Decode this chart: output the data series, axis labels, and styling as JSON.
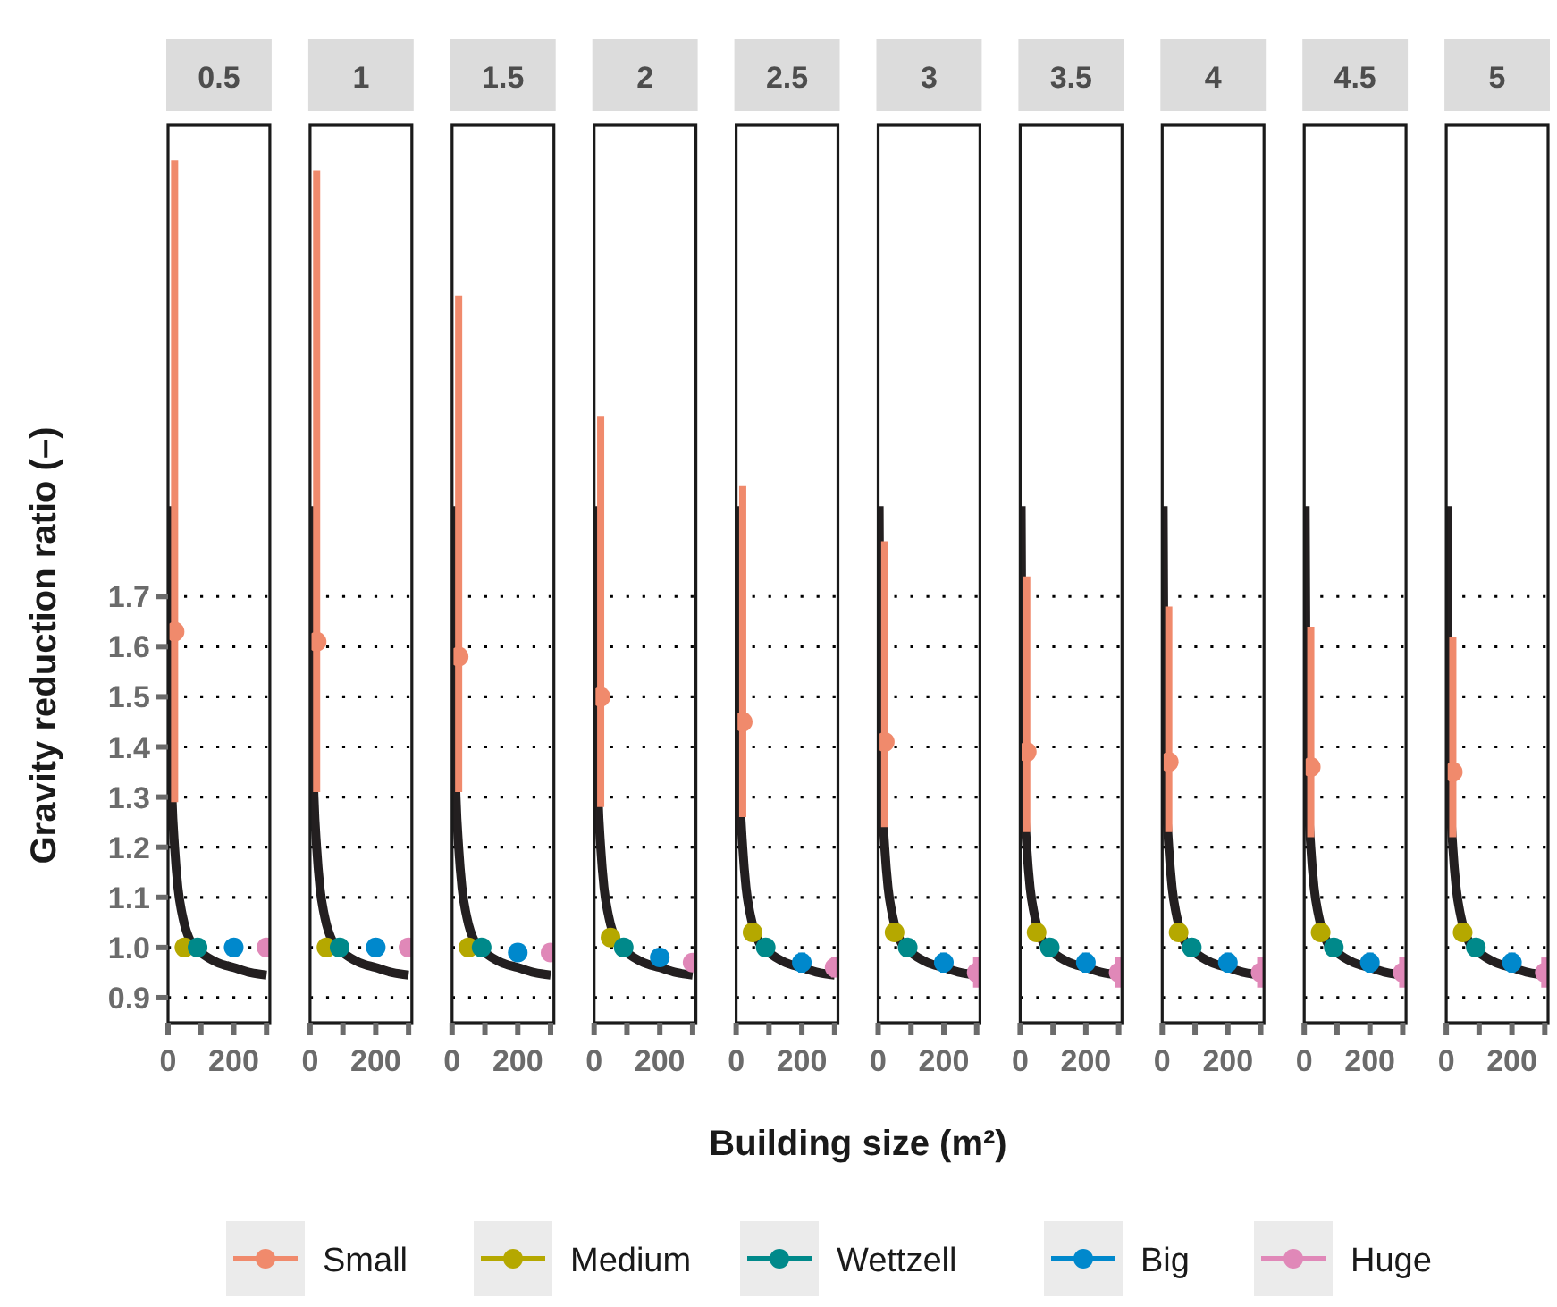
{
  "chart_data": [
    {
      "type": "scatter",
      "title": "0.5",
      "ylabel": "Gravity reduction ratio (–)",
      "legend": "bottom",
      "grid": "y",
      "marker": "circle",
      "xlim": [
        0,
        310
      ],
      "ylim": [
        0.85,
        2.64
      ],
      "xticks": [
        {
          "value": 0,
          "label": "0"
        },
        {
          "value": 100,
          "label": null
        },
        {
          "value": 200,
          "label": "200"
        },
        {
          "value": 300,
          "label": null
        }
      ],
      "yticks": [
        0.9,
        {
          "value": 1,
          "label": "1.0"
        },
        1.1,
        1.2,
        1.3,
        1.4,
        1.5,
        1.6,
        1.7
      ],
      "series": [
        {
          "type": "line",
          "marker": "none",
          "color": "#231f20",
          "x": [
            3,
            5,
            8,
            12,
            20,
            30,
            45,
            70,
            100,
            150,
            200,
            250,
            300
          ],
          "values": [
            1.88,
            1.6,
            1.4,
            1.3,
            1.2,
            1.12,
            1.06,
            1.01,
            0.99,
            0.97,
            0.96,
            0.95,
            0.945
          ]
        },
        {
          "name": "Small",
          "color": "#f08a6c",
          "x": [
            20
          ],
          "values": [
            1.63
          ],
          "errors": [
            [
              1.29,
              2.57
            ]
          ]
        },
        {
          "name": "Medium",
          "color": "#b5a800",
          "x": [
            50
          ],
          "values": [
            1.0
          ]
        },
        {
          "name": "Wettzell",
          "color": "#00898a",
          "x": [
            90
          ],
          "values": [
            1.0
          ]
        },
        {
          "name": "Big",
          "color": "#0088cc",
          "x": [
            200
          ],
          "values": [
            1.0
          ]
        },
        {
          "name": "Huge",
          "color": "#e088b8",
          "x": [
            300
          ],
          "values": [
            1.0
          ]
        }
      ]
    },
    {
      "type": "scatter",
      "title": "1",
      "grid": "y",
      "marker": "circle",
      "tick_labels": "x",
      "xlim": [
        0,
        310
      ],
      "ylim": [
        0.85,
        2.64
      ],
      "xticks": [
        {
          "value": 0,
          "label": "0"
        },
        {
          "value": 100,
          "label": null
        },
        {
          "value": 200,
          "label": "200"
        },
        {
          "value": 300,
          "label": null
        }
      ],
      "yticks": [
        0.9,
        1.0,
        1.1,
        1.2,
        1.3,
        1.4,
        1.5,
        1.6,
        1.7
      ],
      "series": [
        {
          "type": "line",
          "marker": "none",
          "color": "#231f20",
          "x": [
            3,
            5,
            8,
            12,
            20,
            30,
            45,
            70,
            100,
            150,
            200,
            250,
            300
          ],
          "values": [
            1.88,
            1.6,
            1.4,
            1.3,
            1.2,
            1.12,
            1.06,
            1.01,
            0.99,
            0.97,
            0.96,
            0.95,
            0.945
          ]
        },
        {
          "color": "#f08a6c",
          "x": [
            20
          ],
          "values": [
            1.61
          ],
          "errors": [
            [
              1.31,
              2.55
            ]
          ]
        },
        {
          "color": "#b5a800",
          "x": [
            50
          ],
          "values": [
            1.0
          ]
        },
        {
          "color": "#00898a",
          "x": [
            90
          ],
          "values": [
            1.0
          ]
        },
        {
          "color": "#0088cc",
          "x": [
            200
          ],
          "values": [
            1.0
          ]
        },
        {
          "color": "#e088b8",
          "x": [
            300
          ],
          "values": [
            1.0
          ]
        }
      ]
    },
    {
      "type": "scatter",
      "title": "1.5",
      "grid": "y",
      "marker": "circle",
      "tick_labels": "x",
      "xlim": [
        0,
        310
      ],
      "ylim": [
        0.85,
        2.64
      ],
      "xticks": [
        {
          "value": 0,
          "label": "0"
        },
        {
          "value": 100,
          "label": null
        },
        {
          "value": 200,
          "label": "200"
        },
        {
          "value": 300,
          "label": null
        }
      ],
      "yticks": [
        0.9,
        1.0,
        1.1,
        1.2,
        1.3,
        1.4,
        1.5,
        1.6,
        1.7
      ],
      "series": [
        {
          "type": "line",
          "marker": "none",
          "color": "#231f20",
          "x": [
            3,
            5,
            8,
            12,
            20,
            30,
            45,
            70,
            100,
            150,
            200,
            250,
            300
          ],
          "values": [
            1.88,
            1.6,
            1.4,
            1.3,
            1.2,
            1.12,
            1.06,
            1.01,
            0.99,
            0.97,
            0.96,
            0.95,
            0.945
          ]
        },
        {
          "color": "#f08a6c",
          "x": [
            20
          ],
          "values": [
            1.58
          ],
          "errors": [
            [
              1.31,
              2.3
            ]
          ]
        },
        {
          "color": "#b5a800",
          "x": [
            50
          ],
          "values": [
            1.0
          ]
        },
        {
          "color": "#00898a",
          "x": [
            90
          ],
          "values": [
            1.0
          ]
        },
        {
          "color": "#0088cc",
          "x": [
            200
          ],
          "values": [
            0.99
          ]
        },
        {
          "color": "#e088b8",
          "x": [
            300
          ],
          "values": [
            0.99
          ]
        }
      ]
    },
    {
      "type": "scatter",
      "title": "2",
      "grid": "y",
      "marker": "circle",
      "tick_labels": "x",
      "xlim": [
        0,
        310
      ],
      "ylim": [
        0.85,
        2.64
      ],
      "xticks": [
        {
          "value": 0,
          "label": "0"
        },
        {
          "value": 100,
          "label": null
        },
        {
          "value": 200,
          "label": "200"
        },
        {
          "value": 300,
          "label": null
        }
      ],
      "yticks": [
        0.9,
        1.0,
        1.1,
        1.2,
        1.3,
        1.4,
        1.5,
        1.6,
        1.7
      ],
      "series": [
        {
          "type": "line",
          "marker": "none",
          "color": "#231f20",
          "x": [
            3,
            5,
            8,
            12,
            20,
            30,
            45,
            70,
            100,
            150,
            200,
            250,
            300
          ],
          "values": [
            1.88,
            1.6,
            1.4,
            1.3,
            1.2,
            1.12,
            1.06,
            1.01,
            0.99,
            0.97,
            0.96,
            0.95,
            0.945
          ]
        },
        {
          "color": "#f08a6c",
          "x": [
            20
          ],
          "values": [
            1.5
          ],
          "errors": [
            [
              1.28,
              2.06
            ]
          ]
        },
        {
          "color": "#b5a800",
          "x": [
            50
          ],
          "values": [
            1.02
          ]
        },
        {
          "color": "#00898a",
          "x": [
            90
          ],
          "values": [
            1.0
          ]
        },
        {
          "color": "#0088cc",
          "x": [
            200
          ],
          "values": [
            0.98
          ]
        },
        {
          "color": "#e088b8",
          "x": [
            300
          ],
          "values": [
            0.97
          ]
        }
      ]
    },
    {
      "type": "scatter",
      "title": "2.5",
      "xlabel": "Building size (m²)",
      "grid": "y",
      "marker": "circle",
      "tick_labels": "x",
      "xlim": [
        0,
        310
      ],
      "ylim": [
        0.85,
        2.64
      ],
      "xticks": [
        {
          "value": 0,
          "label": "0"
        },
        {
          "value": 100,
          "label": null
        },
        {
          "value": 200,
          "label": "200"
        },
        {
          "value": 300,
          "label": null
        }
      ],
      "yticks": [
        0.9,
        1.0,
        1.1,
        1.2,
        1.3,
        1.4,
        1.5,
        1.6,
        1.7
      ],
      "series": [
        {
          "type": "line",
          "marker": "none",
          "color": "#231f20",
          "x": [
            3,
            5,
            8,
            12,
            20,
            30,
            45,
            70,
            100,
            150,
            200,
            250,
            300
          ],
          "values": [
            1.88,
            1.6,
            1.4,
            1.3,
            1.2,
            1.12,
            1.06,
            1.01,
            0.99,
            0.97,
            0.96,
            0.95,
            0.945
          ]
        },
        {
          "color": "#f08a6c",
          "x": [
            20
          ],
          "values": [
            1.45
          ],
          "errors": [
            [
              1.26,
              1.92
            ]
          ]
        },
        {
          "color": "#b5a800",
          "x": [
            50
          ],
          "values": [
            1.03
          ]
        },
        {
          "color": "#00898a",
          "x": [
            90
          ],
          "values": [
            1.0
          ]
        },
        {
          "color": "#0088cc",
          "x": [
            200
          ],
          "values": [
            0.97
          ],
          "errors": [
            0.02
          ]
        },
        {
          "color": "#e088b8",
          "x": [
            300
          ],
          "values": [
            0.96
          ],
          "errors": [
            0.02
          ]
        }
      ]
    },
    {
      "type": "scatter",
      "title": "3",
      "grid": "y",
      "marker": "circle",
      "tick_labels": "x",
      "xlim": [
        0,
        310
      ],
      "ylim": [
        0.85,
        2.64
      ],
      "xticks": [
        {
          "value": 0,
          "label": "0"
        },
        {
          "value": 100,
          "label": null
        },
        {
          "value": 200,
          "label": "200"
        },
        {
          "value": 300,
          "label": null
        }
      ],
      "yticks": [
        0.9,
        1.0,
        1.1,
        1.2,
        1.3,
        1.4,
        1.5,
        1.6,
        1.7
      ],
      "series": [
        {
          "type": "line",
          "marker": "none",
          "color": "#231f20",
          "x": [
            3,
            5,
            8,
            12,
            20,
            30,
            45,
            70,
            100,
            150,
            200,
            250,
            300
          ],
          "values": [
            1.88,
            1.6,
            1.4,
            1.3,
            1.2,
            1.12,
            1.06,
            1.01,
            0.99,
            0.97,
            0.96,
            0.95,
            0.945
          ]
        },
        {
          "color": "#f08a6c",
          "x": [
            20
          ],
          "values": [
            1.41
          ],
          "errors": [
            [
              1.24,
              1.81
            ]
          ]
        },
        {
          "color": "#b5a800",
          "x": [
            50
          ],
          "values": [
            1.03
          ]
        },
        {
          "color": "#00898a",
          "x": [
            90
          ],
          "values": [
            1.0
          ]
        },
        {
          "color": "#0088cc",
          "x": [
            200
          ],
          "values": [
            0.97
          ],
          "errors": [
            0.02
          ]
        },
        {
          "color": "#e088b8",
          "x": [
            300
          ],
          "values": [
            0.95
          ],
          "errors": [
            0.03
          ]
        }
      ]
    },
    {
      "type": "scatter",
      "title": "3.5",
      "grid": "y",
      "marker": "circle",
      "tick_labels": "x",
      "xlim": [
        0,
        310
      ],
      "ylim": [
        0.85,
        2.64
      ],
      "xticks": [
        {
          "value": 0,
          "label": "0"
        },
        {
          "value": 100,
          "label": null
        },
        {
          "value": 200,
          "label": "200"
        },
        {
          "value": 300,
          "label": null
        }
      ],
      "yticks": [
        0.9,
        1.0,
        1.1,
        1.2,
        1.3,
        1.4,
        1.5,
        1.6,
        1.7
      ],
      "series": [
        {
          "type": "line",
          "marker": "none",
          "color": "#231f20",
          "x": [
            3,
            5,
            8,
            12,
            20,
            30,
            45,
            70,
            100,
            150,
            200,
            250,
            300
          ],
          "values": [
            1.88,
            1.6,
            1.4,
            1.3,
            1.2,
            1.12,
            1.06,
            1.01,
            0.99,
            0.97,
            0.96,
            0.95,
            0.945
          ]
        },
        {
          "color": "#f08a6c",
          "x": [
            20
          ],
          "values": [
            1.39
          ],
          "errors": [
            [
              1.23,
              1.74
            ]
          ]
        },
        {
          "color": "#b5a800",
          "x": [
            50
          ],
          "values": [
            1.03
          ]
        },
        {
          "color": "#00898a",
          "x": [
            90
          ],
          "values": [
            1.0
          ]
        },
        {
          "color": "#0088cc",
          "x": [
            200
          ],
          "values": [
            0.97
          ],
          "errors": [
            0.02
          ]
        },
        {
          "color": "#e088b8",
          "x": [
            300
          ],
          "values": [
            0.95
          ],
          "errors": [
            0.03
          ]
        }
      ]
    },
    {
      "type": "scatter",
      "title": "4",
      "grid": "y",
      "marker": "circle",
      "tick_labels": "x",
      "xlim": [
        0,
        310
      ],
      "ylim": [
        0.85,
        2.64
      ],
      "xticks": [
        {
          "value": 0,
          "label": "0"
        },
        {
          "value": 100,
          "label": null
        },
        {
          "value": 200,
          "label": "200"
        },
        {
          "value": 300,
          "label": null
        }
      ],
      "yticks": [
        0.9,
        1.0,
        1.1,
        1.2,
        1.3,
        1.4,
        1.5,
        1.6,
        1.7
      ],
      "series": [
        {
          "type": "line",
          "marker": "none",
          "color": "#231f20",
          "x": [
            3,
            5,
            8,
            12,
            20,
            30,
            45,
            70,
            100,
            150,
            200,
            250,
            300
          ],
          "values": [
            1.88,
            1.6,
            1.4,
            1.3,
            1.2,
            1.12,
            1.06,
            1.01,
            0.99,
            0.97,
            0.96,
            0.95,
            0.945
          ]
        },
        {
          "color": "#f08a6c",
          "x": [
            20
          ],
          "values": [
            1.37
          ],
          "errors": [
            [
              1.23,
              1.68
            ]
          ]
        },
        {
          "color": "#b5a800",
          "x": [
            50
          ],
          "values": [
            1.03
          ]
        },
        {
          "color": "#00898a",
          "x": [
            90
          ],
          "values": [
            1.0
          ]
        },
        {
          "color": "#0088cc",
          "x": [
            200
          ],
          "values": [
            0.97
          ],
          "errors": [
            0.02
          ]
        },
        {
          "color": "#e088b8",
          "x": [
            300
          ],
          "values": [
            0.95
          ],
          "errors": [
            0.03
          ]
        }
      ]
    },
    {
      "type": "scatter",
      "title": "4.5",
      "grid": "y",
      "marker": "circle",
      "tick_labels": "x",
      "xlim": [
        0,
        310
      ],
      "ylim": [
        0.85,
        2.64
      ],
      "xticks": [
        {
          "value": 0,
          "label": "0"
        },
        {
          "value": 100,
          "label": null
        },
        {
          "value": 200,
          "label": "200"
        },
        {
          "value": 300,
          "label": null
        }
      ],
      "yticks": [
        0.9,
        1.0,
        1.1,
        1.2,
        1.3,
        1.4,
        1.5,
        1.6,
        1.7
      ],
      "series": [
        {
          "type": "line",
          "marker": "none",
          "color": "#231f20",
          "x": [
            3,
            5,
            8,
            12,
            20,
            30,
            45,
            70,
            100,
            150,
            200,
            250,
            300
          ],
          "values": [
            1.88,
            1.6,
            1.4,
            1.3,
            1.2,
            1.12,
            1.06,
            1.01,
            0.99,
            0.97,
            0.96,
            0.95,
            0.945
          ]
        },
        {
          "color": "#f08a6c",
          "x": [
            20
          ],
          "values": [
            1.36
          ],
          "errors": [
            [
              1.22,
              1.64
            ]
          ]
        },
        {
          "color": "#b5a800",
          "x": [
            50
          ],
          "values": [
            1.03
          ]
        },
        {
          "color": "#00898a",
          "x": [
            90
          ],
          "values": [
            1.0
          ]
        },
        {
          "color": "#0088cc",
          "x": [
            200
          ],
          "values": [
            0.97
          ],
          "errors": [
            0.02
          ]
        },
        {
          "color": "#e088b8",
          "x": [
            300
          ],
          "values": [
            0.95
          ],
          "errors": [
            0.03
          ]
        }
      ]
    },
    {
      "type": "scatter",
      "title": "5",
      "grid": "y",
      "marker": "circle",
      "tick_labels": "x",
      "xlim": [
        0,
        310
      ],
      "ylim": [
        0.85,
        2.64
      ],
      "xticks": [
        {
          "value": 0,
          "label": "0"
        },
        {
          "value": 100,
          "label": null
        },
        {
          "value": 200,
          "label": "200"
        },
        {
          "value": 300,
          "label": null
        }
      ],
      "yticks": [
        0.9,
        1.0,
        1.1,
        1.2,
        1.3,
        1.4,
        1.5,
        1.6,
        1.7
      ],
      "series": [
        {
          "type": "line",
          "marker": "none",
          "color": "#231f20",
          "x": [
            3,
            5,
            8,
            12,
            20,
            30,
            45,
            70,
            100,
            150,
            200,
            250,
            300
          ],
          "values": [
            1.88,
            1.6,
            1.4,
            1.3,
            1.2,
            1.12,
            1.06,
            1.01,
            0.99,
            0.97,
            0.96,
            0.95,
            0.945
          ]
        },
        {
          "color": "#f08a6c",
          "x": [
            20
          ],
          "values": [
            1.35
          ],
          "errors": [
            [
              1.22,
              1.62
            ]
          ]
        },
        {
          "color": "#b5a800",
          "x": [
            50
          ],
          "values": [
            1.03
          ]
        },
        {
          "color": "#00898a",
          "x": [
            90
          ],
          "values": [
            1.0
          ]
        },
        {
          "color": "#0088cc",
          "x": [
            200
          ],
          "values": [
            0.97
          ],
          "errors": [
            0.02
          ]
        },
        {
          "color": "#e088b8",
          "x": [
            300
          ],
          "values": [
            0.95
          ],
          "errors": [
            0.03
          ]
        }
      ]
    }
  ]
}
